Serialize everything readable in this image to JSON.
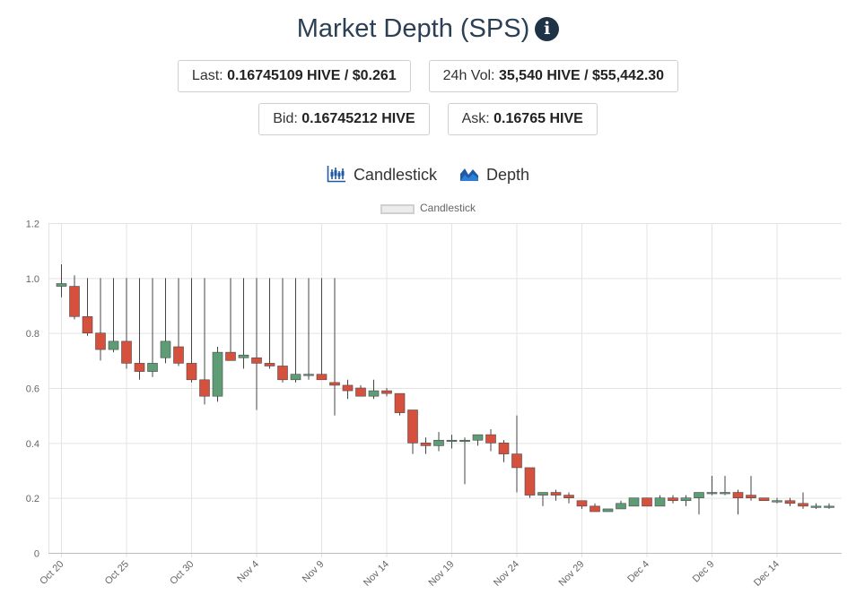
{
  "header": {
    "title": "Market Depth (SPS)",
    "info_icon": "info-circle-icon"
  },
  "stats": {
    "last_label": "Last:",
    "last_value": "0.16745109 HIVE / $0.261",
    "vol_label": "24h Vol:",
    "vol_value": "35,540 HIVE / $55,442.30",
    "bid_label": "Bid:",
    "bid_value": "0.16745212 HIVE",
    "ask_label": "Ask:",
    "ask_value": "0.16765 HIVE"
  },
  "tabs": {
    "candlestick_label": "Candlestick",
    "candlestick_icon": "candlestick-chart-icon",
    "depth_label": "Depth",
    "depth_icon": "area-chart-icon"
  },
  "colors": {
    "up": "#5e9c76",
    "down": "#d5503d",
    "wick": "#444444",
    "grid": "#e3e3e3",
    "title": "#2b3f55",
    "tab_icon": "#1f5aa6"
  },
  "chart_data": {
    "type": "candlestick",
    "legend": [
      "Candlestick"
    ],
    "legend_position": "top",
    "grid": true,
    "ylim": [
      0,
      1.2
    ],
    "yticks": [
      "0",
      "0.2",
      "0.4",
      "0.6",
      "0.8",
      "1.0",
      "1.2"
    ],
    "xticks": [
      "Oct 20",
      "Oct 25",
      "Oct 30",
      "Nov 4",
      "Nov 9",
      "Nov 14",
      "Nov 19",
      "Nov 24",
      "Nov 29",
      "Dec 4",
      "Dec 9",
      "Dec 14"
    ],
    "candles": [
      {
        "date": "Oct 20",
        "open": 0.97,
        "high": 1.05,
        "low": 0.93,
        "close": 0.98
      },
      {
        "date": "Oct 21",
        "open": 0.97,
        "high": 1.01,
        "low": 0.85,
        "close": 0.86
      },
      {
        "date": "Oct 22",
        "open": 0.86,
        "high": 1.0,
        "low": 0.79,
        "close": 0.8
      },
      {
        "date": "Oct 23",
        "open": 0.8,
        "high": 1.0,
        "low": 0.7,
        "close": 0.74
      },
      {
        "date": "Oct 24",
        "open": 0.74,
        "high": 1.0,
        "low": 0.73,
        "close": 0.77
      },
      {
        "date": "Oct 25",
        "open": 0.77,
        "high": 1.0,
        "low": 0.67,
        "close": 0.69
      },
      {
        "date": "Oct 26",
        "open": 0.69,
        "high": 1.0,
        "low": 0.63,
        "close": 0.66
      },
      {
        "date": "Oct 27",
        "open": 0.66,
        "high": 1.0,
        "low": 0.64,
        "close": 0.69
      },
      {
        "date": "Oct 28",
        "open": 0.71,
        "high": 1.0,
        "low": 0.69,
        "close": 0.77
      },
      {
        "date": "Oct 29",
        "open": 0.75,
        "high": 1.0,
        "low": 0.68,
        "close": 0.69
      },
      {
        "date": "Oct 30",
        "open": 0.69,
        "high": 1.0,
        "low": 0.62,
        "close": 0.63
      },
      {
        "date": "Oct 31",
        "open": 0.63,
        "high": 1.0,
        "low": 0.54,
        "close": 0.57
      },
      {
        "date": "Nov 1",
        "open": 0.57,
        "high": 0.75,
        "low": 0.55,
        "close": 0.73
      },
      {
        "date": "Nov 2",
        "open": 0.73,
        "high": 1.0,
        "low": 0.7,
        "close": 0.7
      },
      {
        "date": "Nov 3",
        "open": 0.71,
        "high": 1.0,
        "low": 0.67,
        "close": 0.72
      },
      {
        "date": "Nov 4",
        "open": 0.71,
        "high": 1.0,
        "low": 0.52,
        "close": 0.69
      },
      {
        "date": "Nov 5",
        "open": 0.69,
        "high": 1.0,
        "low": 0.67,
        "close": 0.68
      },
      {
        "date": "Nov 6",
        "open": 0.68,
        "high": 1.0,
        "low": 0.62,
        "close": 0.63
      },
      {
        "date": "Nov 7",
        "open": 0.63,
        "high": 1.0,
        "low": 0.62,
        "close": 0.65
      },
      {
        "date": "Nov 8",
        "open": 0.65,
        "high": 1.0,
        "low": 0.63,
        "close": 0.65
      },
      {
        "date": "Nov 9",
        "open": 0.65,
        "high": 1.0,
        "low": 0.63,
        "close": 0.63
      },
      {
        "date": "Nov 10",
        "open": 0.62,
        "high": 1.0,
        "low": 0.5,
        "close": 0.61
      },
      {
        "date": "Nov 11",
        "open": 0.61,
        "high": 0.63,
        "low": 0.56,
        "close": 0.59
      },
      {
        "date": "Nov 12",
        "open": 0.6,
        "high": 0.61,
        "low": 0.57,
        "close": 0.57
      },
      {
        "date": "Nov 13",
        "open": 0.57,
        "high": 0.63,
        "low": 0.56,
        "close": 0.59
      },
      {
        "date": "Nov 14",
        "open": 0.59,
        "high": 0.6,
        "low": 0.57,
        "close": 0.58
      },
      {
        "date": "Nov 15",
        "open": 0.58,
        "high": 0.58,
        "low": 0.5,
        "close": 0.51
      },
      {
        "date": "Nov 16",
        "open": 0.52,
        "high": 0.52,
        "low": 0.36,
        "close": 0.4
      },
      {
        "date": "Nov 17",
        "open": 0.4,
        "high": 0.42,
        "low": 0.36,
        "close": 0.39
      },
      {
        "date": "Nov 18",
        "open": 0.39,
        "high": 0.44,
        "low": 0.37,
        "close": 0.41
      },
      {
        "date": "Nov 19",
        "open": 0.41,
        "high": 0.43,
        "low": 0.38,
        "close": 0.41
      },
      {
        "date": "Nov 20",
        "open": 0.41,
        "high": 0.42,
        "low": 0.25,
        "close": 0.41
      },
      {
        "date": "Nov 21",
        "open": 0.41,
        "high": 0.43,
        "low": 0.39,
        "close": 0.43
      },
      {
        "date": "Nov 22",
        "open": 0.43,
        "high": 0.45,
        "low": 0.37,
        "close": 0.4
      },
      {
        "date": "Nov 23",
        "open": 0.4,
        "high": 0.41,
        "low": 0.33,
        "close": 0.36
      },
      {
        "date": "Nov 24",
        "open": 0.36,
        "high": 0.5,
        "low": 0.22,
        "close": 0.31
      },
      {
        "date": "Nov 25",
        "open": 0.31,
        "high": 0.31,
        "low": 0.2,
        "close": 0.21
      },
      {
        "date": "Nov 26",
        "open": 0.21,
        "high": 0.22,
        "low": 0.17,
        "close": 0.22
      },
      {
        "date": "Nov 27",
        "open": 0.22,
        "high": 0.23,
        "low": 0.19,
        "close": 0.21
      },
      {
        "date": "Nov 28",
        "open": 0.21,
        "high": 0.22,
        "low": 0.18,
        "close": 0.2
      },
      {
        "date": "Nov 29",
        "open": 0.19,
        "high": 0.19,
        "low": 0.16,
        "close": 0.17
      },
      {
        "date": "Nov 30",
        "open": 0.17,
        "high": 0.18,
        "low": 0.15,
        "close": 0.15
      },
      {
        "date": "Dec 1",
        "open": 0.15,
        "high": 0.16,
        "low": 0.15,
        "close": 0.16
      },
      {
        "date": "Dec 2",
        "open": 0.16,
        "high": 0.19,
        "low": 0.16,
        "close": 0.18
      },
      {
        "date": "Dec 3",
        "open": 0.17,
        "high": 0.2,
        "low": 0.17,
        "close": 0.2
      },
      {
        "date": "Dec 4",
        "open": 0.2,
        "high": 0.2,
        "low": 0.17,
        "close": 0.17
      },
      {
        "date": "Dec 5",
        "open": 0.17,
        "high": 0.21,
        "low": 0.17,
        "close": 0.2
      },
      {
        "date": "Dec 6",
        "open": 0.2,
        "high": 0.21,
        "low": 0.18,
        "close": 0.19
      },
      {
        "date": "Dec 7",
        "open": 0.19,
        "high": 0.21,
        "low": 0.17,
        "close": 0.2
      },
      {
        "date": "Dec 8",
        "open": 0.2,
        "high": 0.22,
        "low": 0.14,
        "close": 0.22
      },
      {
        "date": "Dec 9",
        "open": 0.22,
        "high": 0.28,
        "low": 0.21,
        "close": 0.22
      },
      {
        "date": "Dec 10",
        "open": 0.22,
        "high": 0.28,
        "low": 0.21,
        "close": 0.22
      },
      {
        "date": "Dec 11",
        "open": 0.22,
        "high": 0.23,
        "low": 0.14,
        "close": 0.2
      },
      {
        "date": "Dec 12",
        "open": 0.21,
        "high": 0.28,
        "low": 0.19,
        "close": 0.2
      },
      {
        "date": "Dec 13",
        "open": 0.2,
        "high": 0.2,
        "low": 0.19,
        "close": 0.19
      },
      {
        "date": "Dec 14",
        "open": 0.19,
        "high": 0.2,
        "low": 0.18,
        "close": 0.19
      },
      {
        "date": "Dec 15",
        "open": 0.19,
        "high": 0.2,
        "low": 0.17,
        "close": 0.18
      },
      {
        "date": "Dec 16",
        "open": 0.18,
        "high": 0.22,
        "low": 0.16,
        "close": 0.17
      },
      {
        "date": "Dec 17",
        "open": 0.17,
        "high": 0.18,
        "low": 0.16,
        "close": 0.17
      },
      {
        "date": "Dec 18",
        "open": 0.17,
        "high": 0.18,
        "low": 0.16,
        "close": 0.17
      }
    ]
  }
}
